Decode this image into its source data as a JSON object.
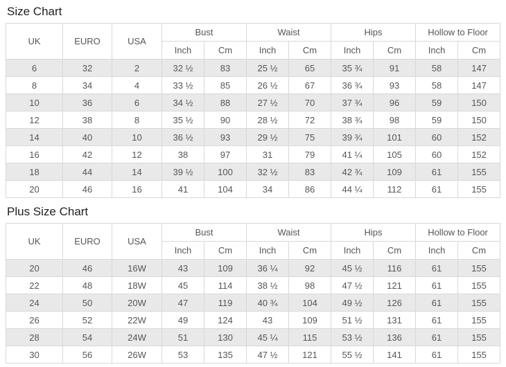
{
  "titles": {
    "size_chart": "Size Chart",
    "plus_size_chart": "Plus Size Chart"
  },
  "table_header": {
    "uk": "UK",
    "euro": "EURO",
    "usa": "USA",
    "groups": [
      "Bust",
      "Waist",
      "Hips",
      "Hollow to Floor"
    ],
    "unit_inch": "Inch",
    "unit_cm": "Cm"
  },
  "colors": {
    "page_background": "#ffffff",
    "row_stripe": "#e9e9e9",
    "border": "#d8d8d8",
    "cell_text": "#555555",
    "title_text": "#1f1f1f"
  },
  "chart_data": [
    {
      "type": "table",
      "title": "Size Chart",
      "column_groups": [
        "Bust",
        "Waist",
        "Hips",
        "Hollow to Floor"
      ],
      "columns": [
        "UK",
        "EURO",
        "USA",
        "Bust Inch",
        "Bust Cm",
        "Waist Inch",
        "Waist Cm",
        "Hips Inch",
        "Hips Cm",
        "Hollow to Floor Inch",
        "Hollow to Floor Cm"
      ],
      "rows": [
        [
          "6",
          "32",
          "2",
          "32 ½",
          "83",
          "25 ½",
          "65",
          "35 ¾",
          "91",
          "58",
          "147"
        ],
        [
          "8",
          "34",
          "4",
          "33 ½",
          "85",
          "26 ½",
          "67",
          "36 ¾",
          "93",
          "58",
          "147"
        ],
        [
          "10",
          "36",
          "6",
          "34 ½",
          "88",
          "27 ½",
          "70",
          "37 ¾",
          "96",
          "59",
          "150"
        ],
        [
          "12",
          "38",
          "8",
          "35 ½",
          "90",
          "28 ½",
          "72",
          "38 ¾",
          "98",
          "59",
          "150"
        ],
        [
          "14",
          "40",
          "10",
          "36 ½",
          "93",
          "29 ½",
          "75",
          "39 ¾",
          "101",
          "60",
          "152"
        ],
        [
          "16",
          "42",
          "12",
          "38",
          "97",
          "31",
          "79",
          "41 ¼",
          "105",
          "60",
          "152"
        ],
        [
          "18",
          "44",
          "14",
          "39 ½",
          "100",
          "32 ½",
          "83",
          "42 ¾",
          "109",
          "61",
          "155"
        ],
        [
          "20",
          "46",
          "16",
          "41",
          "104",
          "34",
          "86",
          "44 ¼",
          "112",
          "61",
          "155"
        ]
      ]
    },
    {
      "type": "table",
      "title": "Plus Size Chart",
      "column_groups": [
        "Bust",
        "Waist",
        "Hips",
        "Hollow to Floor"
      ],
      "columns": [
        "UK",
        "EURO",
        "USA",
        "Bust Inch",
        "Bust Cm",
        "Waist Inch",
        "Waist Cm",
        "Hips Inch",
        "Hips Cm",
        "Hollow to Floor Inch",
        "Hollow to Floor Cm"
      ],
      "rows": [
        [
          "20",
          "46",
          "16W",
          "43",
          "109",
          "36 ¼",
          "92",
          "45 ½",
          "116",
          "61",
          "155"
        ],
        [
          "22",
          "48",
          "18W",
          "45",
          "114",
          "38 ½",
          "98",
          "47 ½",
          "121",
          "61",
          "155"
        ],
        [
          "24",
          "50",
          "20W",
          "47",
          "119",
          "40 ¾",
          "104",
          "49 ½",
          "126",
          "61",
          "155"
        ],
        [
          "26",
          "52",
          "22W",
          "49",
          "124",
          "43",
          "109",
          "51 ½",
          "131",
          "61",
          "155"
        ],
        [
          "28",
          "54",
          "24W",
          "51",
          "130",
          "45 ¼",
          "115",
          "53 ½",
          "136",
          "61",
          "155"
        ],
        [
          "30",
          "56",
          "26W",
          "53",
          "135",
          "47 ½",
          "121",
          "55 ½",
          "141",
          "61",
          "155"
        ]
      ]
    }
  ]
}
